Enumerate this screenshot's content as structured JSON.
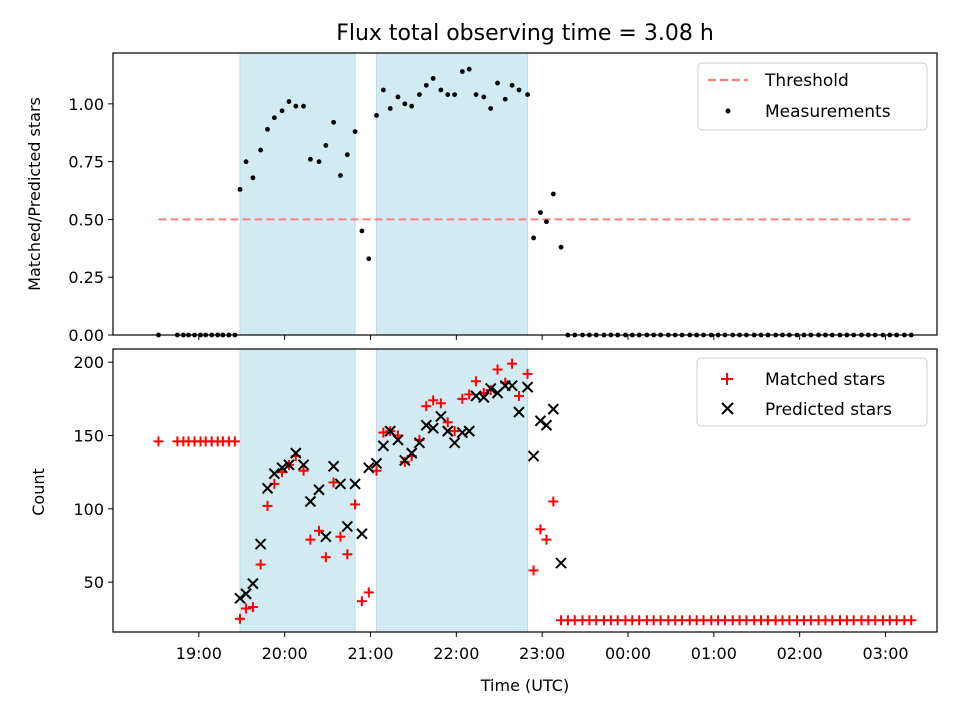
{
  "chart_data": [
    {
      "type": "scatter",
      "title": "Flux total observing time = 3.08 h",
      "xlabel": "",
      "ylabel": "Matched/Predicted stars",
      "ylim": [
        0,
        1.22
      ],
      "yticks": [
        0,
        0.25,
        0.5,
        0.75,
        1.0
      ],
      "ytick_labels": [
        "0.00",
        "0.25",
        "0.50",
        "0.75",
        "1.00"
      ],
      "legend": {
        "position": "top-right",
        "entries": [
          "Threshold",
          "Measurements"
        ]
      },
      "threshold": {
        "name": "Threshold",
        "value": 0.5,
        "x_range": [
          18.53,
          27.3
        ],
        "color": "#ff7f7f"
      },
      "observing_windows": [
        [
          19.48,
          20.82
        ],
        [
          21.07,
          22.83
        ]
      ],
      "series": [
        {
          "name": "Measurements",
          "color": "#000000",
          "x": [
            18.53,
            18.75,
            18.82,
            18.88,
            18.95,
            19.02,
            19.08,
            19.15,
            19.22,
            19.28,
            19.35,
            19.42,
            19.48,
            19.55,
            19.63,
            19.72,
            19.8,
            19.88,
            19.97,
            20.05,
            20.13,
            20.22,
            20.3,
            20.4,
            20.48,
            20.57,
            20.65,
            20.73,
            20.82,
            20.9,
            20.98,
            21.07,
            21.15,
            21.23,
            21.32,
            21.4,
            21.48,
            21.57,
            21.65,
            21.73,
            21.82,
            21.9,
            21.98,
            22.07,
            22.15,
            22.23,
            22.32,
            22.4,
            22.48,
            22.57,
            22.65,
            22.73,
            22.83,
            22.9,
            22.98,
            23.05,
            23.13,
            23.22,
            23.3,
            23.38,
            23.47,
            23.55,
            23.63,
            23.72,
            23.8,
            23.88,
            23.97,
            24.05,
            24.13,
            24.22,
            24.3,
            24.38,
            24.47,
            24.55,
            24.63,
            24.72,
            24.8,
            24.88,
            24.97,
            25.05,
            25.13,
            25.22,
            25.3,
            25.38,
            25.47,
            25.55,
            25.63,
            25.72,
            25.8,
            25.88,
            25.97,
            26.05,
            26.13,
            26.22,
            26.3,
            26.38,
            26.47,
            26.55,
            26.63,
            26.72,
            26.8,
            26.88,
            26.97,
            27.05,
            27.13,
            27.22,
            27.3
          ],
          "y": [
            0,
            0,
            0,
            0,
            0,
            0,
            0,
            0,
            0,
            0,
            0,
            0,
            0.63,
            0.75,
            0.68,
            0.8,
            0.89,
            0.94,
            0.97,
            1.01,
            0.99,
            0.99,
            0.76,
            0.75,
            0.82,
            0.92,
            0.69,
            0.78,
            0.88,
            0.45,
            0.33,
            0.95,
            1.06,
            0.98,
            1.03,
            1.0,
            0.99,
            1.04,
            1.08,
            1.11,
            1.06,
            1.04,
            1.04,
            1.14,
            1.15,
            1.04,
            1.03,
            0.98,
            1.09,
            1.02,
            1.08,
            1.06,
            1.04,
            0.42,
            0.53,
            0.49,
            0.61,
            0.38,
            0,
            0,
            0,
            0,
            0,
            0,
            0,
            0,
            0,
            0,
            0,
            0,
            0,
            0,
            0,
            0,
            0,
            0,
            0,
            0,
            0,
            0,
            0,
            0,
            0,
            0,
            0,
            0,
            0,
            0,
            0,
            0,
            0,
            0,
            0,
            0,
            0,
            0,
            0,
            0,
            0,
            0,
            0,
            0,
            0,
            0,
            0,
            0,
            0
          ]
        }
      ]
    },
    {
      "type": "scatter",
      "title": "",
      "xlabel": "Time (UTC)",
      "ylabel": "Count",
      "xlim": [
        18.0,
        27.6
      ],
      "ylim": [
        16,
        209
      ],
      "yticks": [
        50,
        100,
        150,
        200
      ],
      "ytick_labels": [
        "50",
        "100",
        "150",
        "200"
      ],
      "xticks": [
        19,
        20,
        21,
        22,
        23,
        24,
        25,
        26,
        27
      ],
      "xtick_labels": [
        "19:00",
        "20:00",
        "21:00",
        "22:00",
        "23:00",
        "00:00",
        "01:00",
        "02:00",
        "03:00"
      ],
      "legend": {
        "position": "top-right",
        "entries": [
          "Matched stars",
          "Predicted stars"
        ]
      },
      "observing_windows": [
        [
          19.48,
          20.82
        ],
        [
          21.07,
          22.83
        ]
      ],
      "series": [
        {
          "name": "Matched stars",
          "marker": "plus",
          "color": "#ff0000",
          "x": [
            18.53,
            18.75,
            18.82,
            18.88,
            18.95,
            19.02,
            19.08,
            19.15,
            19.22,
            19.28,
            19.35,
            19.42,
            19.48,
            19.55,
            19.63,
            19.72,
            19.8,
            19.88,
            19.97,
            20.05,
            20.13,
            20.22,
            20.3,
            20.4,
            20.48,
            20.57,
            20.65,
            20.73,
            20.82,
            20.9,
            20.98,
            21.07,
            21.15,
            21.23,
            21.32,
            21.4,
            21.48,
            21.57,
            21.65,
            21.73,
            21.82,
            21.9,
            21.98,
            22.07,
            22.15,
            22.23,
            22.32,
            22.4,
            22.48,
            22.57,
            22.65,
            22.73,
            22.83,
            22.9,
            22.98,
            23.05,
            23.13,
            23.22,
            23.3,
            23.38,
            23.47,
            23.55,
            23.63,
            23.72,
            23.8,
            23.88,
            23.97,
            24.05,
            24.13,
            24.22,
            24.3,
            24.38,
            24.47,
            24.55,
            24.63,
            24.72,
            24.8,
            24.88,
            24.97,
            25.05,
            25.13,
            25.22,
            25.3,
            25.38,
            25.47,
            25.55,
            25.63,
            25.72,
            25.8,
            25.88,
            25.97,
            26.05,
            26.13,
            26.22,
            26.3,
            26.38,
            26.47,
            26.55,
            26.63,
            26.72,
            26.8,
            26.88,
            26.97,
            27.05,
            27.13,
            27.22,
            27.3
          ],
          "y": [
            146,
            146,
            146,
            146,
            146,
            146,
            146,
            146,
            146,
            146,
            146,
            146,
            25,
            32,
            33,
            62,
            102,
            117,
            125,
            130,
            136,
            126,
            79,
            85,
            67,
            118,
            81,
            69,
            103,
            37,
            43,
            126,
            152,
            153,
            150,
            132,
            136,
            147,
            170,
            174,
            172,
            159,
            153,
            175,
            178,
            187,
            179,
            181,
            195,
            186,
            199,
            177,
            192,
            58,
            86,
            79,
            105,
            24,
            24,
            24,
            24,
            24,
            24,
            24,
            24,
            24,
            24,
            24,
            24,
            24,
            24,
            24,
            24,
            24,
            24,
            24,
            24,
            24,
            24,
            24,
            24,
            24,
            24,
            24,
            24,
            24,
            24,
            24,
            24,
            24,
            24,
            24,
            24,
            24,
            24,
            24,
            24,
            24,
            24,
            24,
            24,
            24,
            24,
            24,
            24,
            24,
            24
          ]
        },
        {
          "name": "Predicted stars",
          "marker": "x",
          "color": "#000000",
          "x": [
            19.48,
            19.55,
            19.63,
            19.72,
            19.8,
            19.88,
            19.97,
            20.05,
            20.13,
            20.22,
            20.3,
            20.4,
            20.48,
            20.57,
            20.65,
            20.73,
            20.82,
            20.9,
            20.98,
            21.07,
            21.15,
            21.23,
            21.32,
            21.4,
            21.48,
            21.57,
            21.65,
            21.73,
            21.82,
            21.9,
            21.98,
            22.07,
            22.15,
            22.23,
            22.32,
            22.4,
            22.48,
            22.57,
            22.65,
            22.73,
            22.83,
            22.9,
            22.98,
            23.05,
            23.13,
            23.22
          ],
          "y": [
            39,
            42,
            49,
            76,
            114,
            124,
            128,
            130,
            138,
            130,
            105,
            113,
            81,
            129,
            117,
            88,
            117,
            83,
            128,
            131,
            143,
            153,
            147,
            133,
            138,
            145,
            157,
            155,
            163,
            153,
            145,
            152,
            153,
            177,
            176,
            182,
            179,
            184,
            184,
            166,
            183,
            136,
            160,
            157,
            168,
            63
          ]
        }
      ]
    }
  ]
}
